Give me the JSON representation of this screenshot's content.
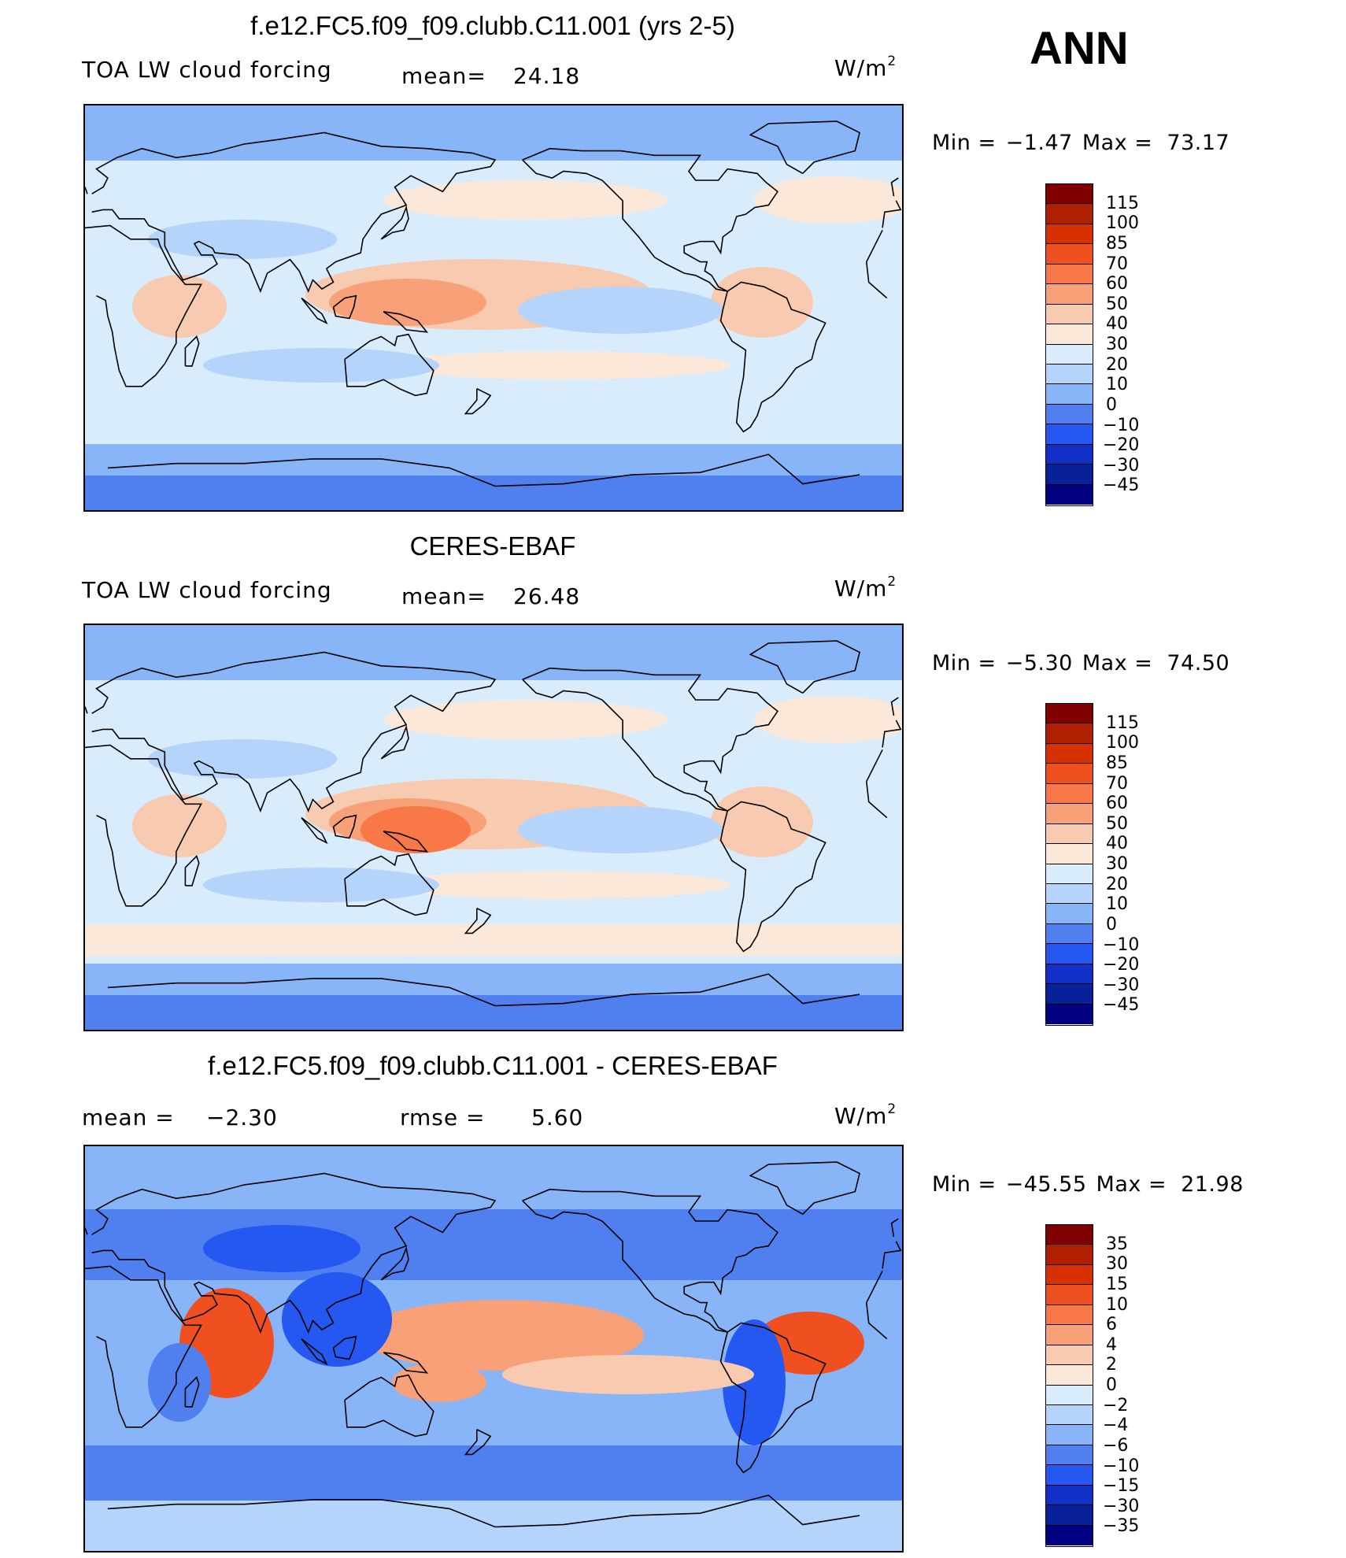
{
  "season": "ANN",
  "units_label": "W/m",
  "units_exponent": "2",
  "panels": [
    {
      "title": "f.e12.FC5.f09_f09.clubb.C11.001 (yrs 2-5)",
      "left_label": "TOA LW cloud forcing",
      "stat_label": "mean=",
      "stat_value": "24.18",
      "min_label": "Min =",
      "min_value": "−1.47",
      "max_label": "Max =",
      "max_value": "73.17",
      "colorbar": {
        "labels": [
          "115",
          "100",
          "85",
          "70",
          "60",
          "50",
          "40",
          "30",
          "20",
          "10",
          "0",
          "−10",
          "−20",
          "−30",
          "−45"
        ],
        "colors": [
          "#800000",
          "#b02000",
          "#d83000",
          "#f05020",
          "#f87848",
          "#f8a078",
          "#f8cab0",
          "#fce8d8",
          "#d8ecfc",
          "#b4d4fc",
          "#88b4f8",
          "#5080f0",
          "#2458f0",
          "#1030c8",
          "#082098",
          "#000080"
        ]
      }
    },
    {
      "title": "CERES-EBAF",
      "left_label": "TOA LW cloud forcing",
      "stat_label": "mean=",
      "stat_value": "26.48",
      "min_label": "Min =",
      "min_value": "−5.30",
      "max_label": "Max =",
      "max_value": "74.50",
      "colorbar": {
        "labels": [
          "115",
          "100",
          "85",
          "70",
          "60",
          "50",
          "40",
          "30",
          "20",
          "10",
          "0",
          "−10",
          "−20",
          "−30",
          "−45"
        ],
        "colors": [
          "#800000",
          "#b02000",
          "#d83000",
          "#f05020",
          "#f87848",
          "#f8a078",
          "#f8cab0",
          "#fce8d8",
          "#d8ecfc",
          "#b4d4fc",
          "#88b4f8",
          "#5080f0",
          "#2458f0",
          "#1030c8",
          "#082098",
          "#000080"
        ]
      }
    },
    {
      "title": "f.e12.FC5.f09_f09.clubb.C11.001 - CERES-EBAF",
      "left_label": "mean =",
      "left_value": "−2.30",
      "stat_label": "rmse =",
      "stat_value": "5.60",
      "min_label": "Min =",
      "min_value": "−45.55",
      "max_label": "Max =",
      "max_value": "21.98",
      "colorbar": {
        "labels": [
          "35",
          "30",
          "15",
          "10",
          "6",
          "4",
          "2",
          "0",
          "−2",
          "−4",
          "−6",
          "−10",
          "−15",
          "−30",
          "−35"
        ],
        "colors": [
          "#800000",
          "#b02000",
          "#d83000",
          "#f05020",
          "#f87848",
          "#f8a078",
          "#f8cab0",
          "#fce8d8",
          "#d8ecfc",
          "#b4d4fc",
          "#88b4f8",
          "#5080f0",
          "#2458f0",
          "#1030c8",
          "#082098",
          "#000080"
        ]
      }
    }
  ]
}
